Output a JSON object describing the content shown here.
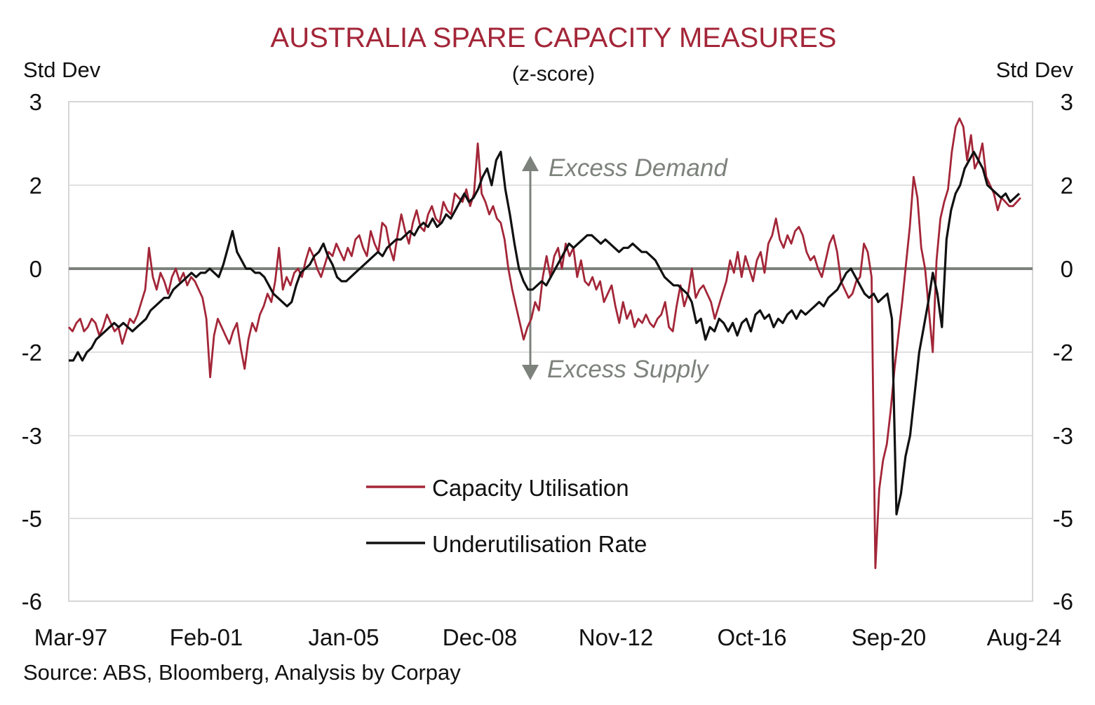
{
  "chart_data": {
    "type": "line",
    "title": "AUSTRALIA SPARE CAPACITY MEASURES",
    "subtitle": "(z-score)",
    "ylabel_left": "Std Dev",
    "ylabel_right": "Std Dev",
    "y_ticks": [
      3,
      2,
      0,
      -2,
      -3,
      -5,
      -6
    ],
    "x_ticks": [
      "Mar-97",
      "Feb-01",
      "Jan-05",
      "Dec-08",
      "Nov-12",
      "Oct-16",
      "Sep-20",
      "Aug-24"
    ],
    "annotations": {
      "up": "Excess Demand",
      "down": "Excess Supply"
    },
    "source": "Source: ABS, Bloomberg, Analysis by Corpay",
    "grid": true,
    "legend_position": "bottom-center",
    "series": [
      {
        "name": "Capacity Utilisation",
        "color": "#a32638",
        "values": [
          -1.4,
          -1.5,
          -1.3,
          -1.2,
          -1.5,
          -1.4,
          -1.2,
          -1.3,
          -1.6,
          -1.4,
          -1.1,
          -1.3,
          -1.5,
          -1.4,
          -1.8,
          -1.5,
          -1.2,
          -1.3,
          -1.1,
          -0.8,
          -0.5,
          0.5,
          -0.2,
          -0.5,
          -0.1,
          -0.3,
          -0.6,
          -0.2,
          0.0,
          -0.3,
          -0.1,
          -0.4,
          -0.2,
          -0.3,
          -0.5,
          -0.7,
          -1.2,
          -2.3,
          -1.6,
          -1.2,
          -1.4,
          -1.6,
          -1.8,
          -1.5,
          -1.3,
          -1.9,
          -2.2,
          -1.7,
          -1.3,
          -1.5,
          -1.1,
          -0.9,
          -0.6,
          -0.8,
          -0.3,
          0.5,
          -0.5,
          -0.2,
          -0.4,
          -0.1,
          0.0,
          -0.2,
          0.2,
          0.5,
          0.3,
          0.0,
          -0.2,
          0.1,
          0.4,
          0.3,
          0.6,
          0.4,
          0.2,
          0.5,
          0.3,
          0.7,
          0.8,
          0.5,
          0.3,
          0.9,
          0.6,
          0.4,
          1.1,
          1.0,
          0.5,
          0.2,
          0.8,
          1.3,
          0.9,
          0.6,
          1.1,
          1.4,
          1.0,
          0.9,
          1.3,
          1.5,
          1.2,
          1.1,
          1.6,
          1.4,
          1.3,
          1.8,
          1.7,
          1.6,
          1.9,
          1.5,
          1.8,
          2.5,
          1.8,
          1.6,
          1.3,
          1.5,
          1.2,
          1.1,
          0.7,
          0.0,
          -0.5,
          -0.9,
          -1.3,
          -1.7,
          -1.4,
          -1.2,
          -0.8,
          -1.0,
          -0.2,
          0.3,
          -0.2,
          0.3,
          0.5,
          0.0,
          0.6,
          0.3,
          0.5,
          -0.2,
          0.2,
          -0.3,
          -0.4,
          -0.2,
          -0.5,
          -0.3,
          -0.8,
          -0.6,
          -0.4,
          -0.9,
          -1.3,
          -0.8,
          -1.2,
          -1.0,
          -1.4,
          -1.2,
          -1.3,
          -1.1,
          -1.3,
          -1.4,
          -1.2,
          -1.1,
          -0.8,
          -1.4,
          -1.5,
          -0.9,
          -0.4,
          -0.9,
          -0.6,
          0.0,
          -0.7,
          -0.5,
          -0.4,
          -0.6,
          -0.8,
          -1.2,
          -0.9,
          -0.6,
          -0.3,
          0.2,
          -0.1,
          0.4,
          -0.2,
          0.3,
          0.0,
          -0.3,
          0.2,
          0.4,
          -0.1,
          0.6,
          0.8,
          1.2,
          0.7,
          0.5,
          0.8,
          0.6,
          0.9,
          1.0,
          0.8,
          0.4,
          0.2,
          0.3,
          0.0,
          -0.2,
          0.2,
          0.6,
          0.8,
          0.4,
          -0.3,
          -0.5,
          -0.7,
          -0.6,
          -0.3,
          -0.2,
          0.6,
          0.4,
          -0.2,
          -5.6,
          -4.3,
          -3.6,
          -3.2,
          -2.7,
          -2.2,
          -1.6,
          -0.8,
          0.1,
          1.0,
          2.1,
          1.7,
          0.5,
          0.0,
          -1.0,
          -2.0,
          0.2,
          1.2,
          1.6,
          1.9,
          2.4,
          2.7,
          2.8,
          2.7,
          2.3,
          2.6,
          2.2,
          2.3,
          2.5,
          2.1,
          2.0,
          1.8,
          1.4,
          1.7,
          1.6,
          1.5,
          1.5,
          1.6,
          1.7
        ]
      },
      {
        "name": "Underutilisation Rate",
        "color": "#111111",
        "values": [
          -2.1,
          -2.1,
          -2.0,
          -2.1,
          -2.0,
          -1.9,
          -1.7,
          -1.6,
          -1.5,
          -1.4,
          -1.3,
          -1.4,
          -1.3,
          -1.4,
          -1.5,
          -1.4,
          -1.3,
          -1.2,
          -1.0,
          -0.9,
          -0.8,
          -0.7,
          -0.7,
          -0.5,
          -0.4,
          -0.3,
          -0.2,
          -0.1,
          -0.2,
          -0.1,
          -0.1,
          0.0,
          -0.1,
          -0.2,
          0.1,
          0.5,
          0.9,
          0.4,
          0.2,
          0.0,
          0.0,
          -0.1,
          -0.1,
          -0.2,
          -0.4,
          -0.6,
          -0.7,
          -0.8,
          -0.9,
          -0.8,
          -0.4,
          -0.1,
          0.0,
          0.1,
          0.3,
          0.4,
          0.6,
          0.3,
          0.1,
          -0.2,
          -0.3,
          -0.3,
          -0.2,
          -0.1,
          0.0,
          0.1,
          0.2,
          0.3,
          0.4,
          0.3,
          0.5,
          0.6,
          0.7,
          0.7,
          0.8,
          0.9,
          0.8,
          1.0,
          1.1,
          1.0,
          1.2,
          1.0,
          1.1,
          1.3,
          1.2,
          1.4,
          1.6,
          1.8,
          1.6,
          1.7,
          1.9,
          2.1,
          2.2,
          2.0,
          2.3,
          2.4,
          1.9,
          1.3,
          0.6,
          0.0,
          -0.3,
          -0.5,
          -0.5,
          -0.4,
          -0.3,
          -0.4,
          -0.2,
          0.0,
          0.2,
          0.4,
          0.6,
          0.5,
          0.6,
          0.7,
          0.8,
          0.8,
          0.7,
          0.6,
          0.7,
          0.6,
          0.5,
          0.4,
          0.5,
          0.5,
          0.6,
          0.5,
          0.4,
          0.4,
          0.3,
          0.2,
          0.0,
          -0.2,
          -0.3,
          -0.4,
          -0.4,
          -0.5,
          -0.6,
          -0.8,
          -1.3,
          -1.2,
          -1.7,
          -1.4,
          -1.5,
          -1.2,
          -1.3,
          -1.5,
          -1.3,
          -1.6,
          -1.3,
          -1.2,
          -1.5,
          -1.1,
          -1.0,
          -1.2,
          -1.1,
          -1.4,
          -1.2,
          -1.3,
          -1.1,
          -1.0,
          -1.2,
          -1.0,
          -1.1,
          -1.0,
          -0.9,
          -0.8,
          -0.9,
          -0.7,
          -0.6,
          -0.5,
          -0.3,
          -0.1,
          0.0,
          -0.2,
          -0.4,
          -0.6,
          -0.7,
          -0.6,
          -0.8,
          -0.7,
          -0.6,
          -1.2,
          -4.9,
          -4.4,
          -3.5,
          -3.0,
          -2.5,
          -2.0,
          -1.4,
          -0.8,
          -0.1,
          -0.6,
          -1.4,
          0.7,
          1.4,
          1.8,
          2.0,
          2.2,
          2.3,
          2.4,
          2.3,
          2.2,
          2.0,
          1.9,
          1.8,
          1.7,
          1.8,
          1.6,
          1.7,
          1.8
        ]
      }
    ]
  }
}
